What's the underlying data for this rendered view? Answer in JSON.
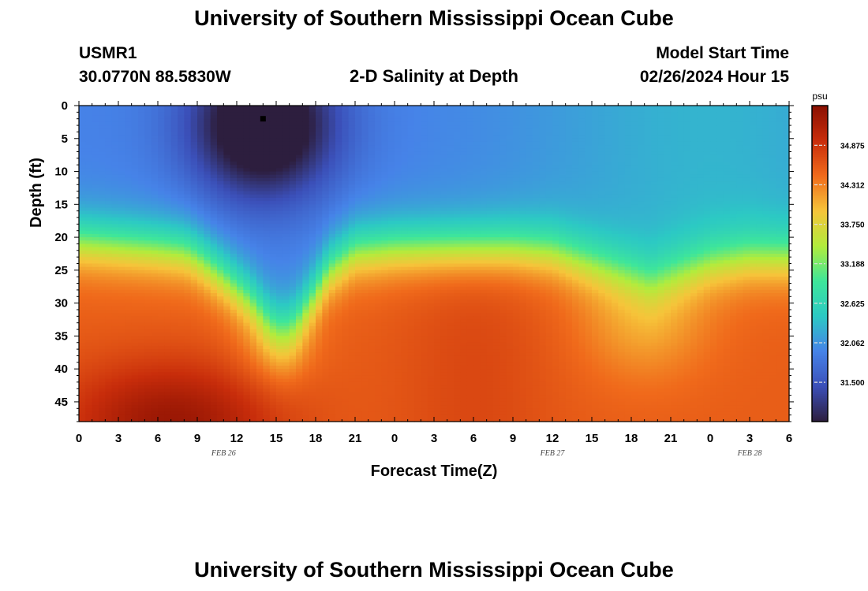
{
  "page": {
    "title_top": "University of Southern Mississippi Ocean Cube",
    "title_bottom": "University of Southern Mississippi Ocean Cube",
    "station_id": "USMR1",
    "coordinates": "30.0770N  88.5830W",
    "plot_title": "2-D Salinity at Depth",
    "model_start_label": "Model Start Time",
    "model_start_value": "02/26/2024 Hour 15"
  },
  "chart_data": {
    "type": "heatmap",
    "title": "2-D Salinity at Depth",
    "xlabel": "Forecast Time(Z)",
    "ylabel": "Depth (ft)",
    "x_range_hours": [
      0,
      54
    ],
    "y_range_ft": [
      0,
      48
    ],
    "x_tick_labels": [
      "0",
      "3",
      "6",
      "9",
      "12",
      "15",
      "18",
      "21",
      "0",
      "3",
      "6",
      "9",
      "12",
      "15",
      "18",
      "21",
      "0",
      "3",
      "6"
    ],
    "y_tick_labels": [
      "0",
      "5",
      "10",
      "15",
      "20",
      "25",
      "30",
      "35",
      "40",
      "45"
    ],
    "date_labels": [
      {
        "label": "FEB 26",
        "hour": 11
      },
      {
        "label": "FEB 27",
        "hour": 36
      },
      {
        "label": "FEB 28",
        "hour": 51
      }
    ],
    "colorbar": {
      "unit": "psu",
      "min": 30.94,
      "max": 35.44,
      "ticks": [
        "34.875",
        "34.312",
        "33.750",
        "33.188",
        "32.625",
        "32.062",
        "31.500"
      ],
      "colors": [
        "#2d1e3e",
        "#3b4fb8",
        "#4683e8",
        "#2cc9c4",
        "#3ee69a",
        "#b2ec3c",
        "#f6c43a",
        "#f06a1b",
        "#c82d0b",
        "#8a1002"
      ]
    },
    "marker": {
      "hour": 14,
      "depth_ft": 2
    },
    "halocline_depth_by_hour": [
      [
        0,
        20.5
      ],
      [
        3,
        21
      ],
      [
        6,
        21.5
      ],
      [
        8,
        22
      ],
      [
        9,
        23
      ],
      [
        11,
        26
      ],
      [
        13,
        29.5
      ],
      [
        14.5,
        33
      ],
      [
        15.5,
        34
      ],
      [
        16.5,
        33
      ],
      [
        18,
        28.5
      ],
      [
        19,
        25
      ],
      [
        21,
        22
      ],
      [
        24,
        21.5
      ],
      [
        30,
        21.5
      ],
      [
        33,
        21.5
      ],
      [
        36,
        22
      ],
      [
        39,
        24
      ],
      [
        42,
        26
      ],
      [
        43.5,
        27
      ],
      [
        45,
        26
      ],
      [
        48,
        24
      ],
      [
        51,
        23
      ],
      [
        54,
        23
      ]
    ],
    "surface_low_center": {
      "hour": 14,
      "depth_ft": 3,
      "value_psu": 30.94
    }
  }
}
